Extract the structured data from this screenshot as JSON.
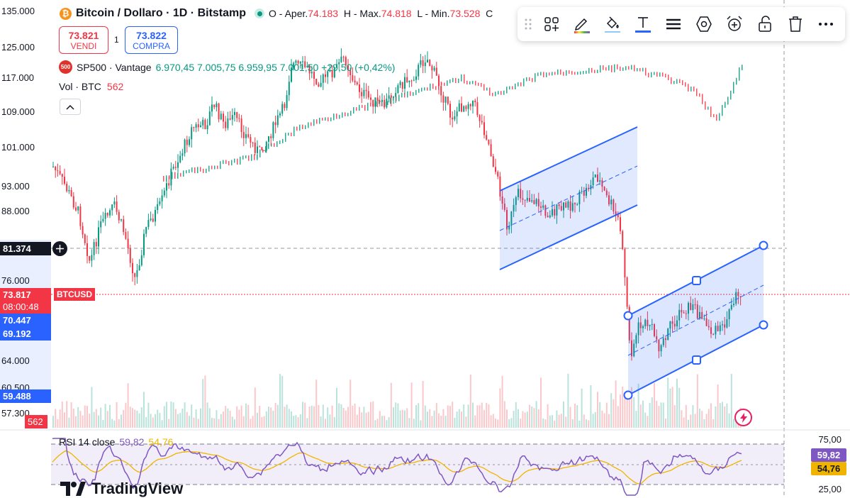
{
  "legend": {
    "title": "Bitcoin / Dollaro · 1D · Bitstamp",
    "btc_symbol": "₿",
    "open_label": "O - Aper.",
    "open_value": "74.183",
    "high_label": "H - Max.",
    "high_value": "74.818",
    "low_label": "L - Min.",
    "low_value": "73.528",
    "close_label": "C"
  },
  "trade": {
    "sell_price": "73.821",
    "sell_label": "VENDI",
    "spread": "1",
    "buy_price": "73.822",
    "buy_label": "COMPRA"
  },
  "sp500": {
    "icon_text": "500",
    "name": "SP500 · Vantage",
    "values": "6.970,45  7.005,75  6.959,95  7.001,50  +29,50 (+0,42%)"
  },
  "volume": {
    "label": "Vol · BTC",
    "value": "562"
  },
  "price_axis": {
    "labels": [
      "135.000",
      "125.000",
      "117.000",
      "109.000",
      "101.000",
      "93.000",
      "88.000",
      "76.000",
      "64.000",
      "60.500",
      "57.300"
    ],
    "tags": {
      "crosshair": "81.374",
      "last_price": "73.817",
      "countdown": "08:00:48",
      "range_top": "70.447",
      "range_mid": "69.192",
      "range_low": "59.488",
      "volume": "562"
    },
    "ticker": "BTCUSD"
  },
  "rsi": {
    "label": "RSI 14 close",
    "value": "59,82",
    "ma_value": "54,76",
    "upper": "75,00",
    "lower": "25,00"
  },
  "brand": {
    "name": "TradingView"
  },
  "toolbar": {
    "tools": [
      "drag-handle-icon",
      "templates-icon",
      "pencil-color-icon",
      "fill-color-icon",
      "text-color-icon",
      "line-style-icon",
      "settings-hex-icon",
      "alert-add-icon",
      "lock-icon",
      "trash-icon",
      "more-icon"
    ]
  },
  "colors": {
    "up": "#089981",
    "down": "#f23645",
    "accent": "#2962ff",
    "rsi_line": "#7e57c2",
    "rsi_ma": "#f0b400"
  }
}
